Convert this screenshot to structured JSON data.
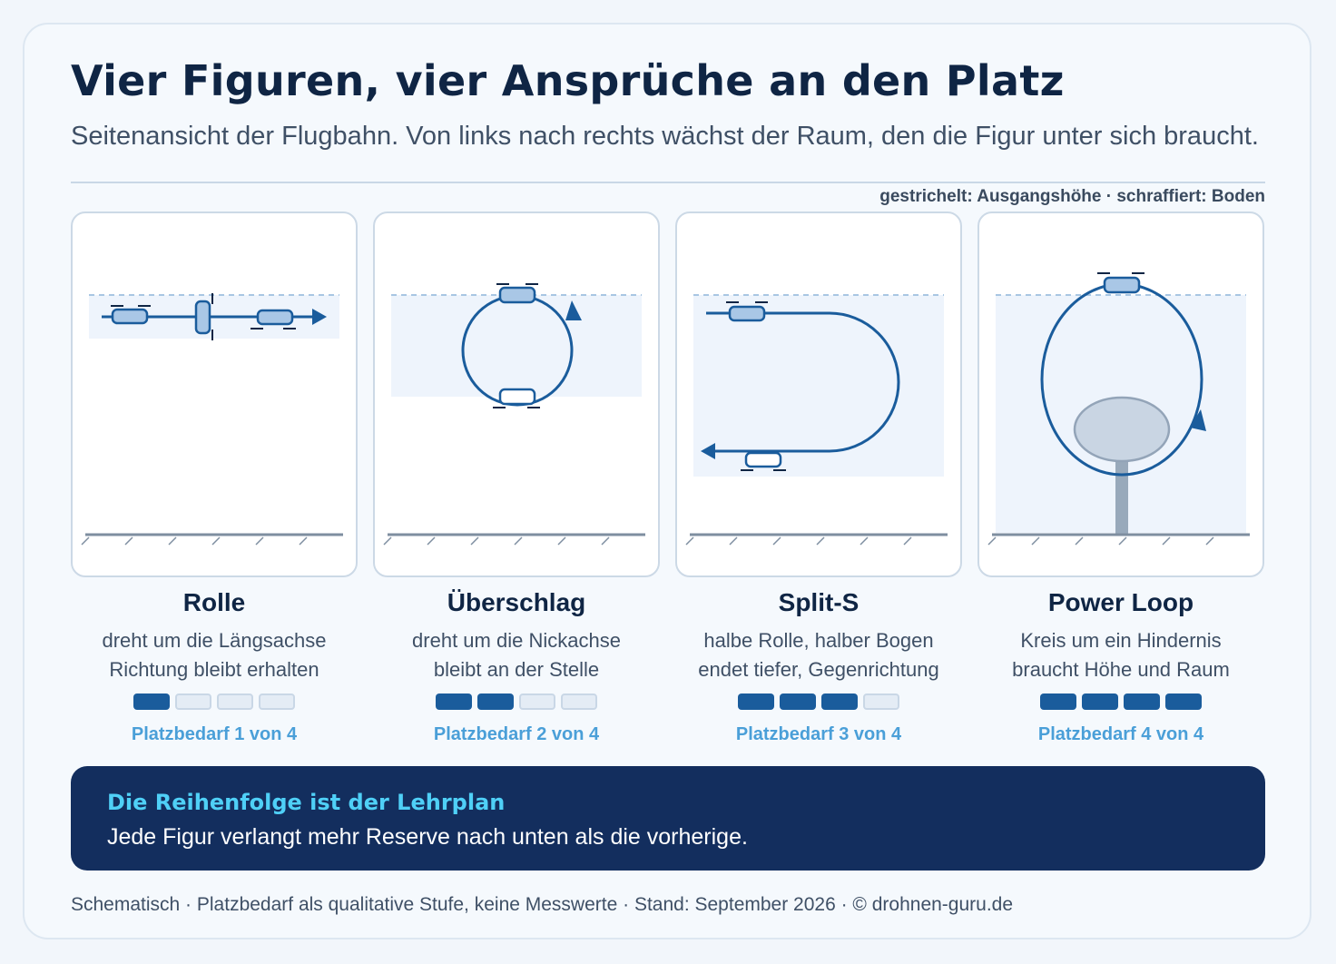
{
  "title": "Vier Figuren, vier Ansprüche an den Platz",
  "subtitle": "Seitenansicht der Flugbahn. Von links nach rechts wächst der Raum, den die Figur unter sich braucht.",
  "legend": "gestrichelt: Ausgangshöhe · schraffiert: Boden",
  "figures": [
    {
      "name": "Rolle",
      "desc1": "dreht um die Längsachse",
      "desc2": "Richtung bleibt erhalten",
      "level": 1,
      "max": 4,
      "level_text": "Platzbedarf 1 von 4"
    },
    {
      "name": "Überschlag",
      "desc1": "dreht um die Nickachse",
      "desc2": "bleibt an der Stelle",
      "level": 2,
      "max": 4,
      "level_text": "Platzbedarf 2 von 4"
    },
    {
      "name": "Split-S",
      "desc1": "halbe Rolle, halber Bogen",
      "desc2": "endet tiefer, Gegenrichtung",
      "level": 3,
      "max": 4,
      "level_text": "Platzbedarf 3 von 4"
    },
    {
      "name": "Power Loop",
      "desc1": "Kreis um ein Hindernis",
      "desc2": "braucht Höhe und Raum",
      "level": 4,
      "max": 4,
      "level_text": "Platzbedarf 4 von 4"
    }
  ],
  "callout": {
    "title": "Die Reihenfolge ist der Lehrplan",
    "text": "Jede Figur verlangt mehr Reserve nach unten als die vorherige."
  },
  "footer": "Schematisch · Platzbedarf als qualitative Stufe, keine Messwerte · Stand: September 2026 · © drohnen-guru.de",
  "colors": {
    "navy": "#132e5e",
    "path": "#1a5c9c",
    "accent": "#4a9fd8",
    "cyan": "#4fd0f7",
    "zone": "#eef4fc"
  }
}
